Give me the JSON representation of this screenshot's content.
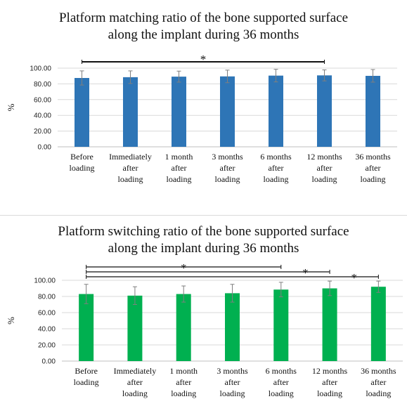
{
  "chart_data": [
    {
      "type": "bar",
      "title_lines": [
        "Platform matching ratio of the bone supported surface",
        "along the implant during 36 months"
      ],
      "ylabel": "%",
      "ylim": [
        0,
        100
      ],
      "yticks": [
        "0.00",
        "20.00",
        "40.00",
        "60.00",
        "80.00",
        "100.00"
      ],
      "categories": [
        [
          "Before",
          "loading"
        ],
        [
          "Immediately",
          "after",
          "loading"
        ],
        [
          "1 month",
          "after",
          "loading"
        ],
        [
          "3 months",
          "after",
          "loading"
        ],
        [
          "6 months",
          "after",
          "loading"
        ],
        [
          "12 months",
          "after",
          "loading"
        ],
        [
          "36 months",
          "after",
          "loading"
        ]
      ],
      "values": [
        87.5,
        88.5,
        89.2,
        89.5,
        90.5,
        90.8,
        90.2
      ],
      "errors": [
        9,
        8,
        7,
        8,
        8,
        7,
        8
      ],
      "bar_color": "#2e75b6",
      "grid": true,
      "significance": [
        {
          "from": 0,
          "to": 5,
          "label": "*"
        }
      ]
    },
    {
      "type": "bar",
      "title_lines": [
        "Platform switching ratio of the bone supported surface",
        "along the implant during 36 months"
      ],
      "ylabel": "%",
      "ylim": [
        0,
        100
      ],
      "yticks": [
        "0.00",
        "20.00",
        "40.00",
        "60.00",
        "80.00",
        "100.00"
      ],
      "categories": [
        [
          "Before",
          "loading"
        ],
        [
          "Immediately",
          "after",
          "loading"
        ],
        [
          "1 month",
          "after",
          "loading"
        ],
        [
          "3 months",
          "after",
          "loading"
        ],
        [
          "6 months",
          "after",
          "loading"
        ],
        [
          "12 months",
          "after",
          "loading"
        ],
        [
          "36 months",
          "after",
          "loading"
        ]
      ],
      "values": [
        83,
        81,
        83,
        84,
        88.5,
        90,
        92
      ],
      "errors": [
        12,
        11,
        10,
        11,
        9,
        9,
        7
      ],
      "bar_color": "#00b050",
      "grid": true,
      "significance": [
        {
          "from": 0,
          "to": 4,
          "label": "*"
        },
        {
          "from": 0,
          "to": 5,
          "label": "*"
        },
        {
          "from": 0,
          "to": 6,
          "label": "*"
        }
      ]
    }
  ]
}
